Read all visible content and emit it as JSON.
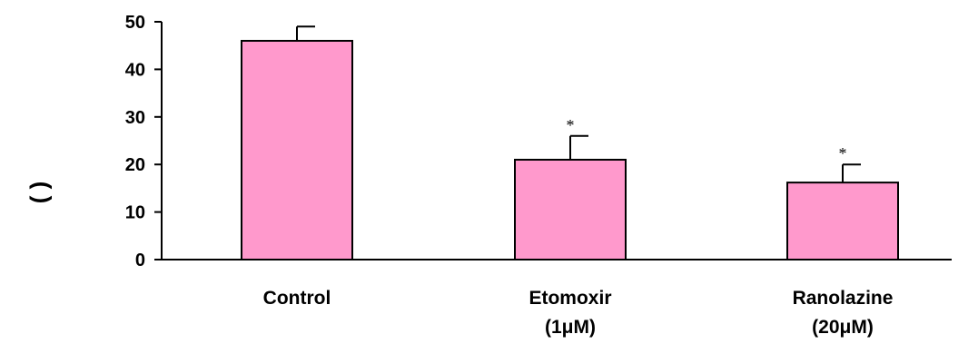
{
  "chart_data": {
    "type": "bar",
    "title": "",
    "xlabel": "",
    "ylabel": "(    )",
    "categories": [
      [
        "Control"
      ],
      [
        "Etomoxir",
        "(1μM)"
      ],
      [
        "Ranolazine",
        "(20μM)"
      ]
    ],
    "values": [
      46,
      21,
      16.2
    ],
    "error_upper": [
      49,
      26,
      20
    ],
    "significance": [
      "",
      "*",
      "*"
    ],
    "ylim": [
      0,
      50
    ],
    "yticks": [
      0,
      10,
      20,
      30,
      40,
      50
    ],
    "grid": false,
    "legend": "none",
    "bar_color": "#FF99CC",
    "bar_edge_color": "#000000"
  }
}
